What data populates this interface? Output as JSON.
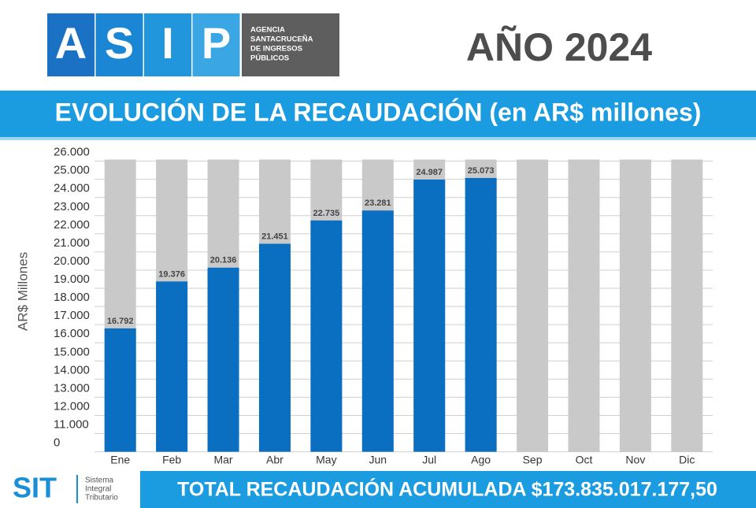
{
  "header": {
    "logo_letters": [
      "A",
      "S",
      "I",
      "P"
    ],
    "agency": [
      "AGENCIA",
      "SANTACRUCEÑA",
      "DE INGRESOS",
      "PÚBLICOS"
    ],
    "year": "AÑO 2024"
  },
  "chart_data": {
    "type": "bar",
    "title": "EVOLUCIÓN DE LA RECAUDACIÓN (en AR$ millones)",
    "y_label": "AR$ Millones",
    "categories": [
      "Ene",
      "Feb",
      "Mar",
      "Abr",
      "May",
      "Jun",
      "Jul",
      "Ago",
      "Sep",
      "Oct",
      "Nov",
      "Dic"
    ],
    "values": [
      16792,
      19376,
      20136,
      21451,
      22735,
      23281,
      24987,
      25073,
      null,
      null,
      null,
      null
    ],
    "value_labels": [
      "16.792",
      "19.376",
      "20.136",
      "21.451",
      "22.735",
      "23.281",
      "24.987",
      "25.073",
      null,
      null,
      null,
      null
    ],
    "color": "#0a6fc0",
    "background_bar_color": "#c9c9c9",
    "ylim": [
      0,
      26000
    ],
    "ybreak": [
      0,
      10000
    ],
    "yticks": [
      0,
      {
        "value": 11000,
        "label": "11.000"
      },
      {
        "value": 12000,
        "label": "12.000"
      },
      {
        "value": 13000,
        "label": "13.000"
      },
      {
        "value": 14000,
        "label": "14.000"
      },
      {
        "value": 15000,
        "label": "15.000"
      },
      {
        "value": 16000,
        "label": "16.000"
      },
      {
        "value": 17000,
        "label": "17.000"
      },
      {
        "value": 18000,
        "label": "18.000"
      },
      {
        "value": 19000,
        "label": "19.000"
      },
      {
        "value": 20000,
        "label": "20.000"
      },
      {
        "value": 21000,
        "label": "21.000"
      },
      {
        "value": 22000,
        "label": "22.000"
      },
      {
        "value": 23000,
        "label": "23.000"
      },
      {
        "value": 24000,
        "label": "24.000"
      },
      {
        "value": 25000,
        "label": "25.000"
      },
      {
        "value": 26000,
        "label": "26.000"
      }
    ],
    "grid": true
  },
  "footer": {
    "logo": "SIT",
    "logo_text": [
      "Sistema",
      "Integral",
      "Tributario"
    ],
    "total": "TOTAL RECAUDACIÓN ACUMULADA $173.835.017.177,50"
  }
}
